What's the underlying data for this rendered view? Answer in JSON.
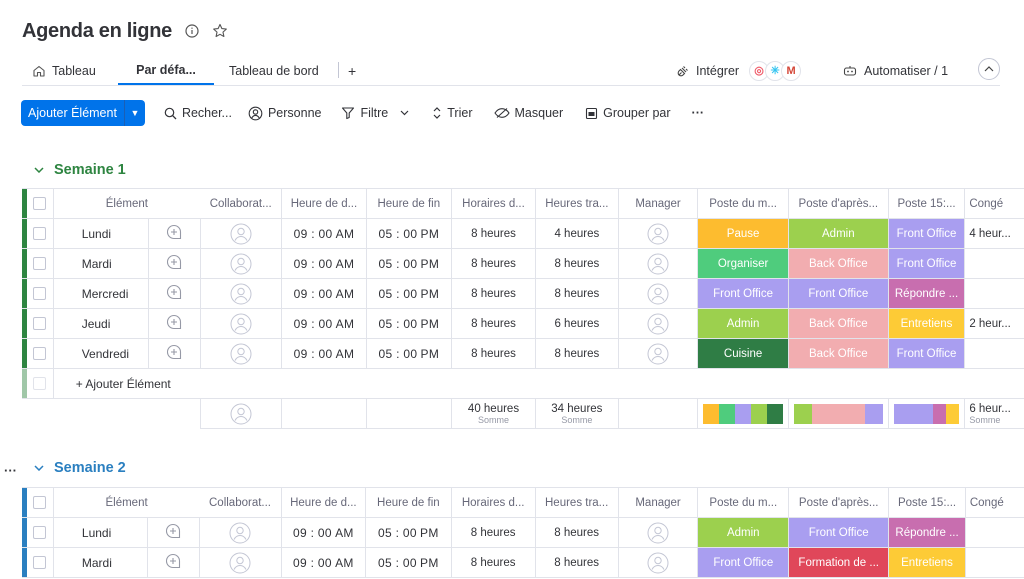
{
  "board": {
    "title": "Agenda en ligne"
  },
  "tabs": [
    {
      "label": "Tableau"
    },
    {
      "label": "Par défa..."
    },
    {
      "label": "Tableau de bord"
    },
    {
      "label": "+"
    }
  ],
  "integrations": {
    "label": "Intégrer"
  },
  "automations": {
    "label": "Automatiser / 1"
  },
  "toolbar": {
    "add_label": "Ajouter Élément",
    "search_label": "Recher...",
    "person_label": "Personne",
    "filter_label": "Filtre",
    "sort_label": "Trier",
    "hide_label": "Masquer",
    "group_label": "Grouper par",
    "more_label": "···"
  },
  "columns": [
    "Élément",
    "Collaborat...",
    "Heure de d...",
    "Heure de fin",
    "Horaires d...",
    "Heures tra...",
    "Manager",
    "Poste du m...",
    "Poste d'après...",
    "Poste 15:...",
    "Congé"
  ],
  "colors": {
    "Pause": "#fdbc2f",
    "Admin": "#9cd04e",
    "Organiser": "#4fcc7d",
    "Front Office": "#a99ef0",
    "Back Office": "#f2adb0",
    "Répondre ...": "#c86eaf",
    "Entretiens": "#fdcb36",
    "Cuisine": "#2f7d45",
    "Formation de ...": "#e0475a",
    "group1": "#2e8541",
    "group2": "#2a7fc0"
  },
  "groups": [
    {
      "title": "Semaine 1",
      "add_item": "+ Ajouter Élément",
      "rows": [
        {
          "item": "Lundi",
          "start": "09 : 00",
          "start_ampm": "AM",
          "end": "05 : 00",
          "end_ampm": "PM",
          "schedule": "8 heures",
          "worked": "4 heures",
          "morning": "Pause",
          "afternoon": "Admin",
          "late": "Front Office",
          "leave": "4 heur..."
        },
        {
          "item": "Mardi",
          "start": "09 : 00",
          "start_ampm": "AM",
          "end": "05 : 00",
          "end_ampm": "PM",
          "schedule": "8 heures",
          "worked": "8 heures",
          "morning": "Organiser",
          "afternoon": "Back Office",
          "late": "Front Office",
          "leave": ""
        },
        {
          "item": "Mercredi",
          "start": "09 : 00",
          "start_ampm": "AM",
          "end": "05 : 00",
          "end_ampm": "PM",
          "schedule": "8 heures",
          "worked": "8 heures",
          "morning": "Front Office",
          "afternoon": "Front Office",
          "late": "Répondre ...",
          "leave": ""
        },
        {
          "item": "Jeudi",
          "start": "09 : 00",
          "start_ampm": "AM",
          "end": "05 : 00",
          "end_ampm": "PM",
          "schedule": "8 heures",
          "worked": "6 heures",
          "morning": "Admin",
          "afternoon": "Back Office",
          "late": "Entretiens",
          "leave": "2 heur..."
        },
        {
          "item": "Vendredi",
          "start": "09 : 00",
          "start_ampm": "AM",
          "end": "05 : 00",
          "end_ampm": "PM",
          "schedule": "8 heures",
          "worked": "8 heures",
          "morning": "Cuisine",
          "afternoon": "Back Office",
          "late": "Front Office",
          "leave": ""
        }
      ],
      "summary": {
        "schedule": "40 heures",
        "schedule_label": "Somme",
        "worked": "34 heures",
        "worked_label": "Somme",
        "leave": "6 heur...",
        "leave_label": "Somme"
      }
    },
    {
      "title": "Semaine 2",
      "rows": [
        {
          "item": "Lundi",
          "start": "09 : 00",
          "start_ampm": "AM",
          "end": "05 : 00",
          "end_ampm": "PM",
          "schedule": "8 heures",
          "worked": "8 heures",
          "morning": "Admin",
          "afternoon": "Front Office",
          "late": "Répondre ...",
          "leave": ""
        },
        {
          "item": "Mardi",
          "start": "09 : 00",
          "start_ampm": "AM",
          "end": "05 : 00",
          "end_ampm": "PM",
          "schedule": "8 heures",
          "worked": "8 heures",
          "morning": "Front Office",
          "afternoon": "Formation de ...",
          "late": "Entretiens",
          "leave": ""
        }
      ]
    }
  ]
}
